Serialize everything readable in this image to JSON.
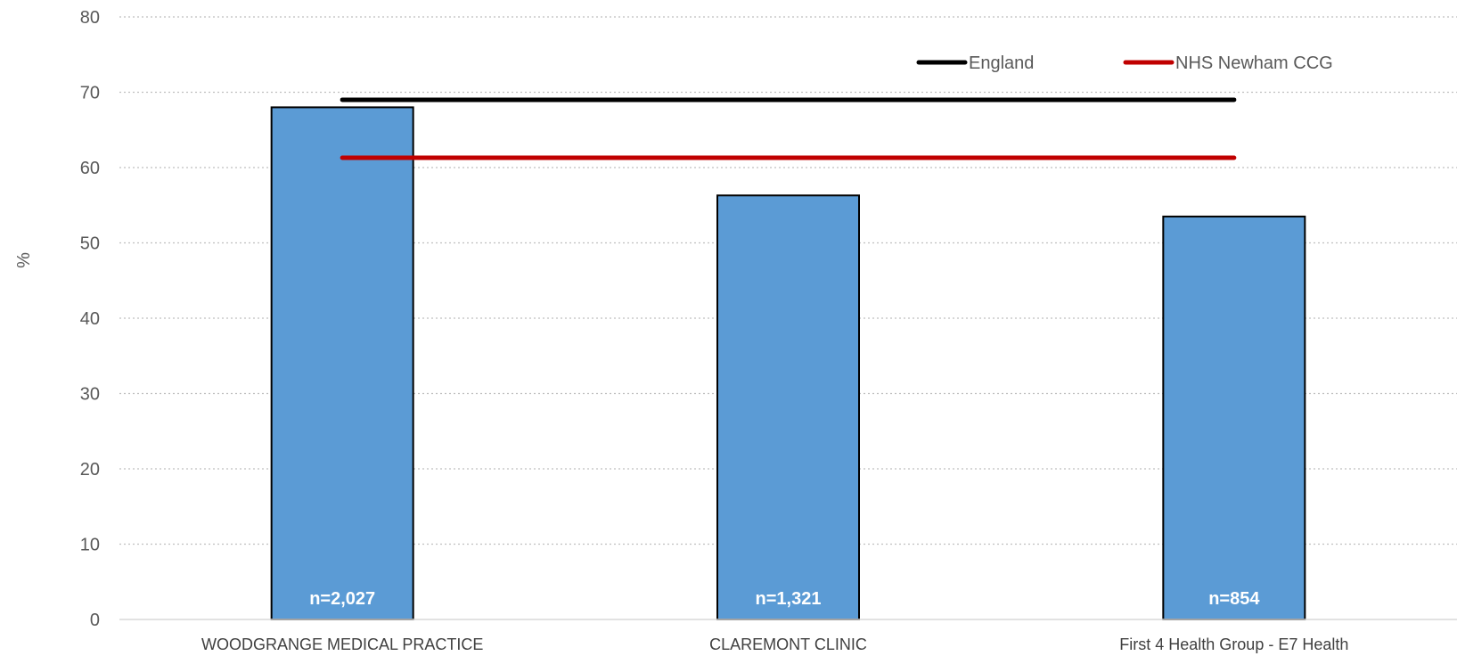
{
  "chart_data": {
    "type": "bar",
    "categories": [
      "WOODGRANGE MEDICAL PRACTICE",
      "CLAREMONT CLINIC",
      "First 4 Health Group - E7 Health"
    ],
    "values": [
      68.0,
      56.3,
      53.5
    ],
    "data_labels": [
      "n=2,027",
      "n=1,321",
      "n=854"
    ],
    "ylabel": "%",
    "ylim": [
      0,
      80
    ],
    "yticks": [
      0,
      10,
      20,
      30,
      40,
      50,
      60,
      70,
      80
    ],
    "grid": true,
    "bar_color": "#5B9BD5",
    "bar_edge_color": "#000000",
    "reference_lines": [
      {
        "name": "England",
        "value": 69.0,
        "color": "#000000"
      },
      {
        "name": "NHS Newham CCG",
        "value": 61.3,
        "color": "#C00000"
      }
    ],
    "legend_placement": "top-right"
  }
}
